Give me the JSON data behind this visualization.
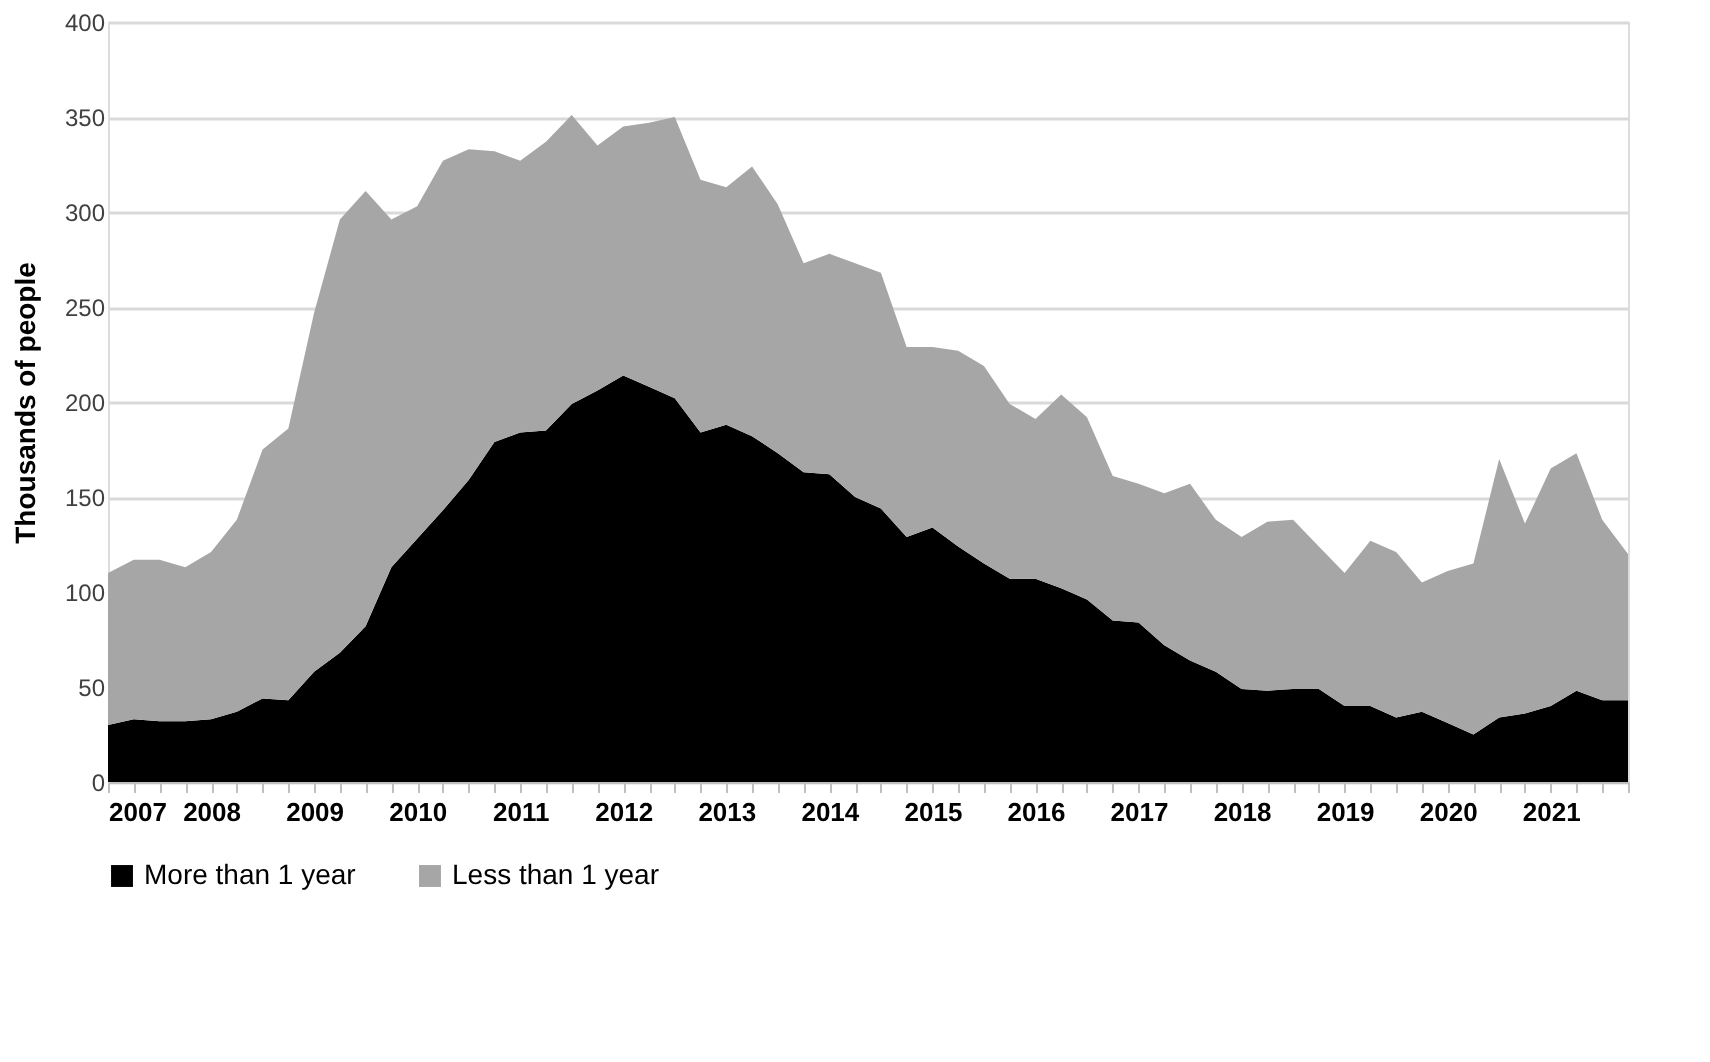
{
  "chart_data": {
    "type": "area",
    "stacked": true,
    "ylabel": "Thousands of people",
    "x": [
      2007,
      2007.25,
      2007.5,
      2007.75,
      2008,
      2008.25,
      2008.5,
      2008.75,
      2009,
      2009.25,
      2009.5,
      2009.75,
      2010,
      2010.25,
      2010.5,
      2010.75,
      2011,
      2011.25,
      2011.5,
      2011.75,
      2012,
      2012.25,
      2012.5,
      2012.75,
      2013,
      2013.25,
      2013.5,
      2013.75,
      2014,
      2014.25,
      2014.5,
      2014.75,
      2015,
      2015.25,
      2015.5,
      2015.75,
      2016,
      2016.25,
      2016.5,
      2016.75,
      2017,
      2017.25,
      2017.5,
      2017.75,
      2018,
      2018.25,
      2018.5,
      2018.75,
      2019,
      2019.25,
      2019.5,
      2019.75,
      2020,
      2020.25,
      2020.5,
      2020.75,
      2021,
      2021.25,
      2021.5,
      2021.75
    ],
    "series": [
      {
        "name": "More than 1 year",
        "color": "#000000",
        "values": [
          30,
          33,
          32,
          32,
          33,
          37,
          44,
          43,
          58,
          68,
          82,
          113,
          128,
          143,
          159,
          179,
          184,
          185,
          199,
          206,
          214,
          208,
          202,
          184,
          188,
          182,
          173,
          163,
          162,
          150,
          144,
          129,
          134,
          124,
          115,
          107,
          107,
          102,
          96,
          85,
          84,
          72,
          64,
          58,
          49,
          48,
          49,
          49,
          40,
          40,
          34,
          37,
          31,
          25,
          34,
          36,
          40,
          48,
          43,
          43
        ]
      },
      {
        "name": "Less than 1 year",
        "color": "#a6a6a6",
        "values": [
          80,
          84,
          85,
          81,
          88,
          101,
          131,
          143,
          189,
          228,
          229,
          183,
          175,
          184,
          174,
          153,
          143,
          152,
          152,
          129,
          131,
          139,
          148,
          133,
          125,
          142,
          131,
          110,
          116,
          123,
          124,
          100,
          95,
          103,
          104,
          92,
          84,
          102,
          96,
          76,
          73,
          80,
          93,
          80,
          80,
          89,
          89,
          75,
          70,
          87,
          87,
          68,
          80,
          90,
          136,
          100,
          125,
          125,
          95,
          77
        ]
      }
    ],
    "xlim": [
      2007,
      2021.75
    ],
    "xticks": [
      2007,
      {
        "value": 2007.25,
        "label": null
      },
      {
        "value": 2007.5,
        "label": null
      },
      {
        "value": 2007.75,
        "label": null
      },
      2008,
      {
        "value": 2008.25,
        "label": null
      },
      {
        "value": 2008.5,
        "label": null
      },
      {
        "value": 2008.75,
        "label": null
      },
      2009,
      {
        "value": 2009.25,
        "label": null
      },
      {
        "value": 2009.5,
        "label": null
      },
      {
        "value": 2009.75,
        "label": null
      },
      2010,
      {
        "value": 2010.25,
        "label": null
      },
      {
        "value": 2010.5,
        "label": null
      },
      {
        "value": 2010.75,
        "label": null
      },
      2011,
      {
        "value": 2011.25,
        "label": null
      },
      {
        "value": 2011.5,
        "label": null
      },
      {
        "value": 2011.75,
        "label": null
      },
      2012,
      {
        "value": 2012.25,
        "label": null
      },
      {
        "value": 2012.5,
        "label": null
      },
      {
        "value": 2012.75,
        "label": null
      },
      2013,
      {
        "value": 2013.25,
        "label": null
      },
      {
        "value": 2013.5,
        "label": null
      },
      {
        "value": 2013.75,
        "label": null
      },
      2014,
      {
        "value": 2014.25,
        "label": null
      },
      {
        "value": 2014.5,
        "label": null
      },
      {
        "value": 2014.75,
        "label": null
      },
      2015,
      {
        "value": 2015.25,
        "label": null
      },
      {
        "value": 2015.5,
        "label": null
      },
      {
        "value": 2015.75,
        "label": null
      },
      2016,
      {
        "value": 2016.25,
        "label": null
      },
      {
        "value": 2016.5,
        "label": null
      },
      {
        "value": 2016.75,
        "label": null
      },
      2017,
      {
        "value": 2017.25,
        "label": null
      },
      {
        "value": 2017.5,
        "label": null
      },
      {
        "value": 2017.75,
        "label": null
      },
      2018,
      {
        "value": 2018.25,
        "label": null
      },
      {
        "value": 2018.5,
        "label": null
      },
      {
        "value": 2018.75,
        "label": null
      },
      2019,
      {
        "value": 2019.25,
        "label": null
      },
      {
        "value": 2019.5,
        "label": null
      },
      {
        "value": 2019.75,
        "label": null
      },
      2020,
      {
        "value": 2020.25,
        "label": null
      },
      {
        "value": 2020.5,
        "label": null
      },
      {
        "value": 2020.75,
        "label": null
      },
      2021,
      {
        "value": 2021.25,
        "label": null
      },
      {
        "value": 2021.5,
        "label": null
      },
      {
        "value": 2021.75,
        "label": null
      }
    ],
    "ylim": [
      0,
      400
    ],
    "yticks": [
      0,
      50,
      100,
      150,
      200,
      250,
      300,
      350,
      400
    ],
    "grid": "y",
    "legend": "bottom"
  }
}
